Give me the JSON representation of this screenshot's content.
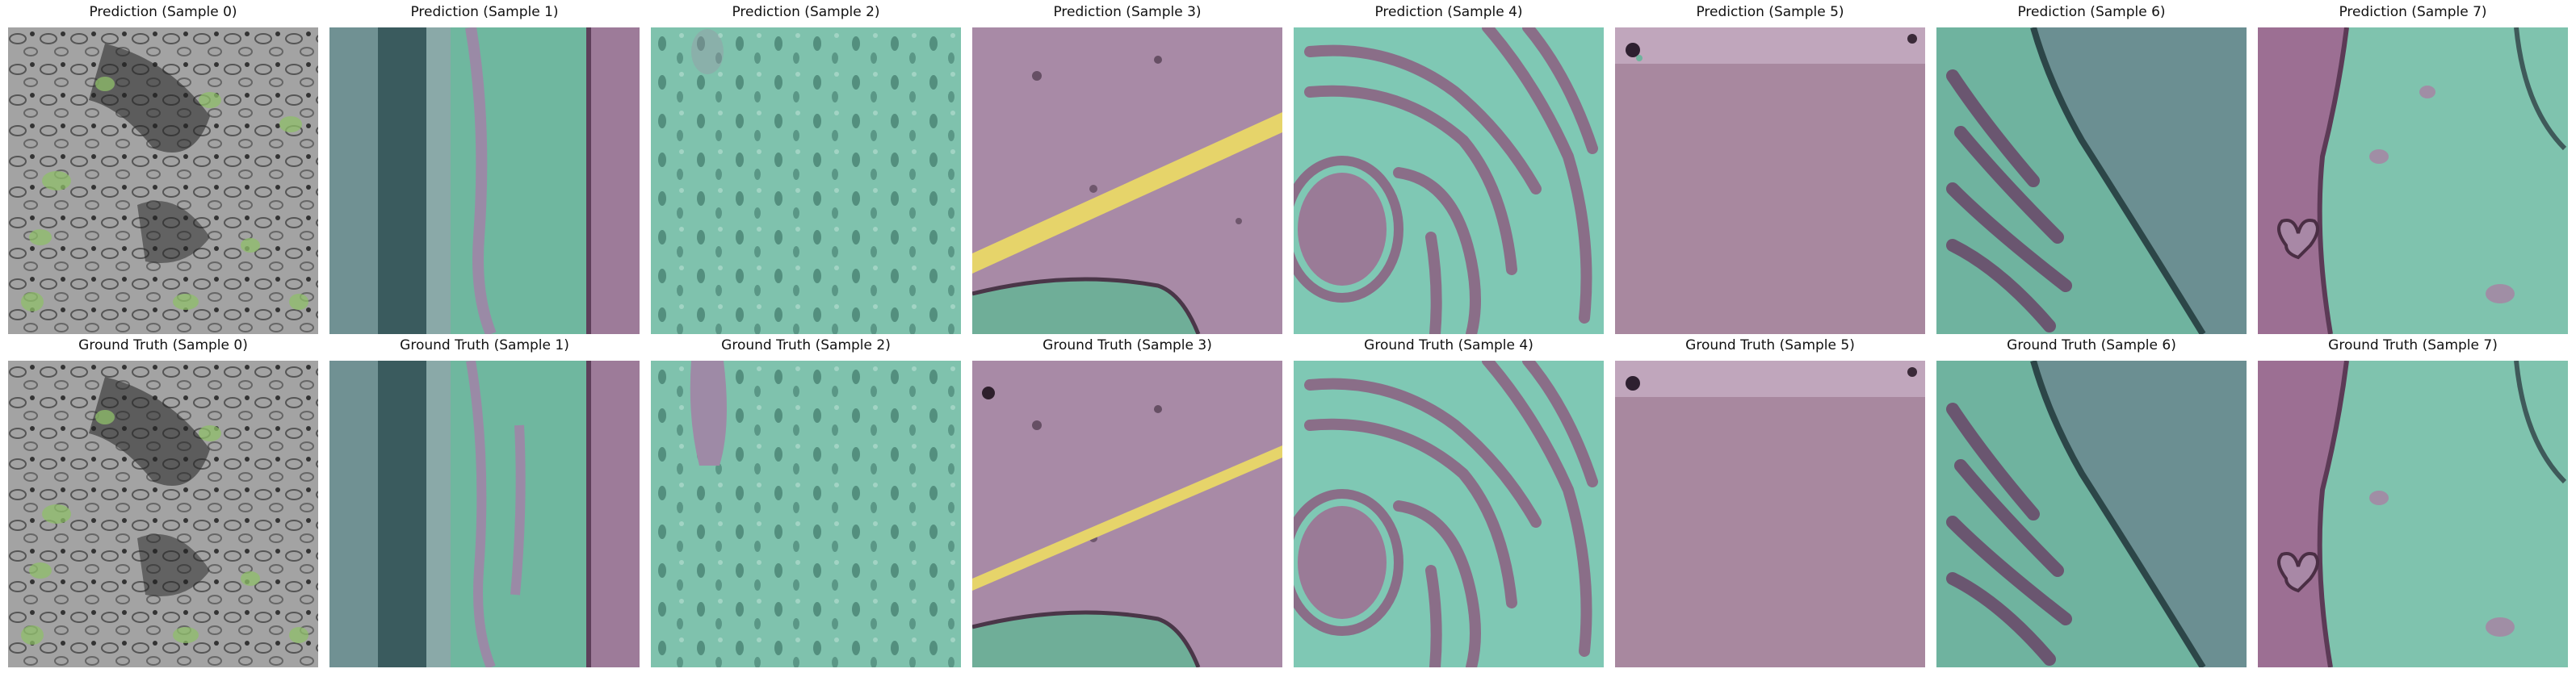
{
  "figure": {
    "rows": [
      {
        "row_name": "prediction",
        "panels": [
          {
            "title": "Prediction (Sample 0)",
            "overlay": "sparse-green-on-gray"
          },
          {
            "title": "Prediction (Sample 1)",
            "overlay": "teal-with-purple-band"
          },
          {
            "title": "Prediction (Sample 2)",
            "overlay": "teal-uniform"
          },
          {
            "title": "Prediction (Sample 3)",
            "overlay": "purple-with-yellow-stripe"
          },
          {
            "title": "Prediction (Sample 4)",
            "overlay": "teal-with-purple-membranes"
          },
          {
            "title": "Prediction (Sample 5)",
            "overlay": "purple-uniform"
          },
          {
            "title": "Prediction (Sample 6)",
            "overlay": "teal-with-dark-nucleus"
          },
          {
            "title": "Prediction (Sample 7)",
            "overlay": "purple-left-teal-right"
          }
        ]
      },
      {
        "row_name": "ground-truth",
        "panels": [
          {
            "title": "Ground Truth (Sample 0)",
            "overlay": "sparse-green-on-gray"
          },
          {
            "title": "Ground Truth (Sample 1)",
            "overlay": "teal-with-purple-band"
          },
          {
            "title": "Ground Truth (Sample 2)",
            "overlay": "teal-uniform"
          },
          {
            "title": "Ground Truth (Sample 3)",
            "overlay": "purple-with-yellow-stripe"
          },
          {
            "title": "Ground Truth (Sample 4)",
            "overlay": "teal-with-purple-membranes"
          },
          {
            "title": "Ground Truth (Sample 5)",
            "overlay": "purple-uniform"
          },
          {
            "title": "Ground Truth (Sample 6)",
            "overlay": "teal-with-dark-nucleus"
          },
          {
            "title": "Ground Truth (Sample 7)",
            "overlay": "purple-left-teal-right"
          }
        ]
      }
    ],
    "colors": {
      "teal": "#7fc8b4",
      "purple": "#a88aa6",
      "yellow": "#e6d46a",
      "green": "#8fbf6a",
      "gray": "#a0a0a0",
      "dark": "#1e3a3a"
    }
  }
}
